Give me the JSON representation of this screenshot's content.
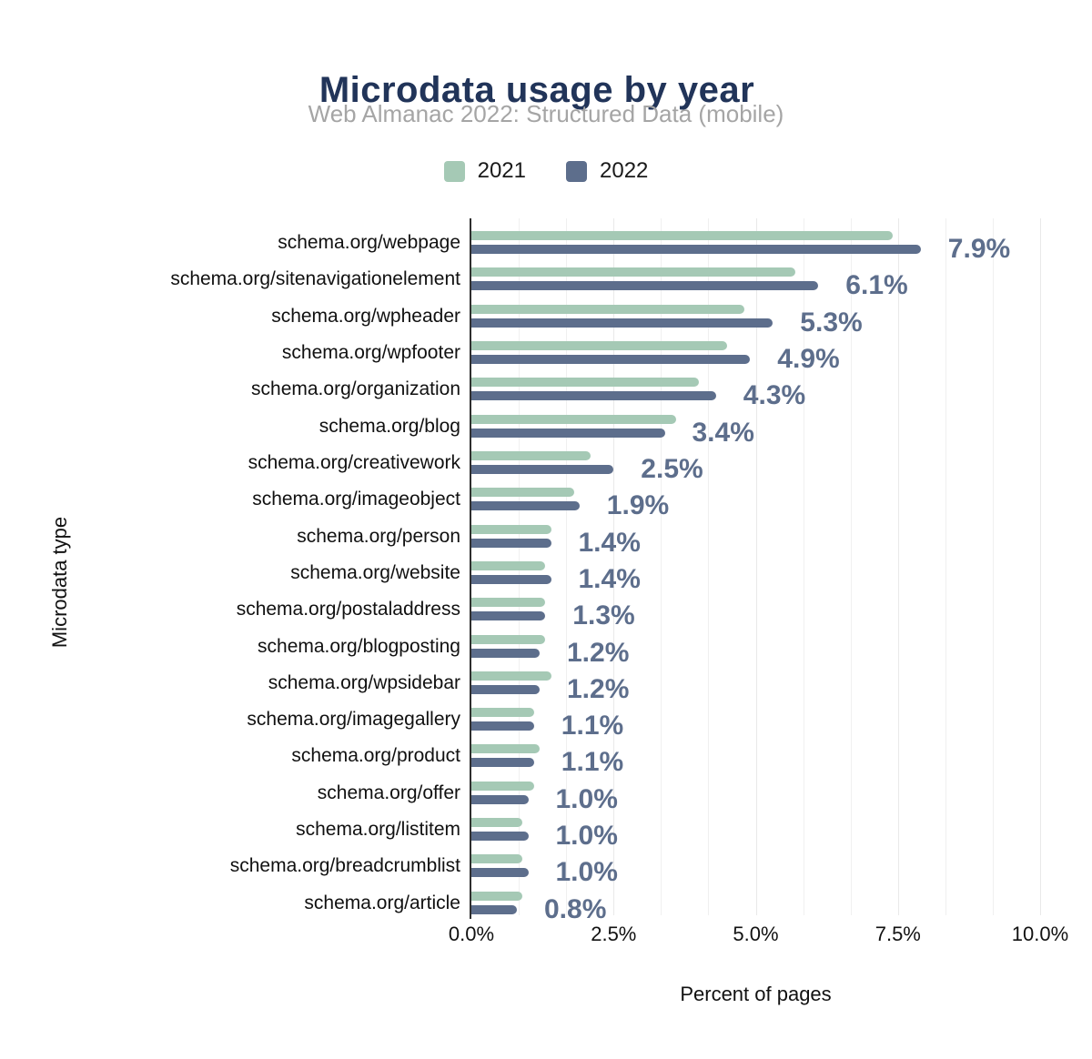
{
  "header": {
    "title": "Microdata usage by year",
    "subtitle": "Web Almanac 2022: Structured Data (mobile)"
  },
  "colors": {
    "title": "#213459",
    "subtitle": "#a5a5a5",
    "text": "#111111",
    "gridline": "#f0f0f0",
    "axis_line": "#2f2f2f",
    "series_2021": "#a5c9b5",
    "series_2022": "#5d6e8c",
    "value_label": "#5d6e8c"
  },
  "chart_data": {
    "type": "bar",
    "orientation": "horizontal",
    "title": "Microdata usage by year",
    "subtitle": "Web Almanac 2022: Structured Data (mobile)",
    "xlabel": "Percent of pages",
    "ylabel": "Microdata type",
    "xlim": [
      0,
      10
    ],
    "x_tick_values": [
      0,
      2.5,
      5,
      7.5,
      10
    ],
    "x_tick_labels": [
      "0.0%",
      "2.5%",
      "5.0%",
      "7.5%",
      "10.0%"
    ],
    "grid": "vertical-minor",
    "legend_position": "top-center",
    "categories": [
      "schema.org/webpage",
      "schema.org/sitenavigationelement",
      "schema.org/wpheader",
      "schema.org/wpfooter",
      "schema.org/organization",
      "schema.org/blog",
      "schema.org/creativework",
      "schema.org/imageobject",
      "schema.org/person",
      "schema.org/website",
      "schema.org/postaladdress",
      "schema.org/blogposting",
      "schema.org/wpsidebar",
      "schema.org/imagegallery",
      "schema.org/product",
      "schema.org/offer",
      "schema.org/listitem",
      "schema.org/breadcrumblist",
      "schema.org/article"
    ],
    "series": [
      {
        "name": "2021",
        "color": "#a5c9b5",
        "values": [
          7.4,
          5.7,
          4.8,
          4.5,
          4.0,
          3.6,
          2.1,
          1.8,
          1.4,
          1.3,
          1.3,
          1.3,
          1.4,
          1.1,
          1.2,
          1.1,
          0.9,
          0.9,
          0.9
        ]
      },
      {
        "name": "2022",
        "color": "#5d6e8c",
        "values": [
          7.9,
          6.1,
          5.3,
          4.9,
          4.3,
          3.4,
          2.5,
          1.9,
          1.4,
          1.4,
          1.3,
          1.2,
          1.2,
          1.1,
          1.1,
          1.0,
          1.0,
          1.0,
          0.8
        ],
        "data_labels": [
          "7.9%",
          "6.1%",
          "5.3%",
          "4.9%",
          "4.3%",
          "3.4%",
          "2.5%",
          "1.9%",
          "1.4%",
          "1.4%",
          "1.3%",
          "1.2%",
          "1.2%",
          "1.1%",
          "1.1%",
          "1.0%",
          "1.0%",
          "1.0%",
          "0.8%"
        ]
      }
    ]
  }
}
